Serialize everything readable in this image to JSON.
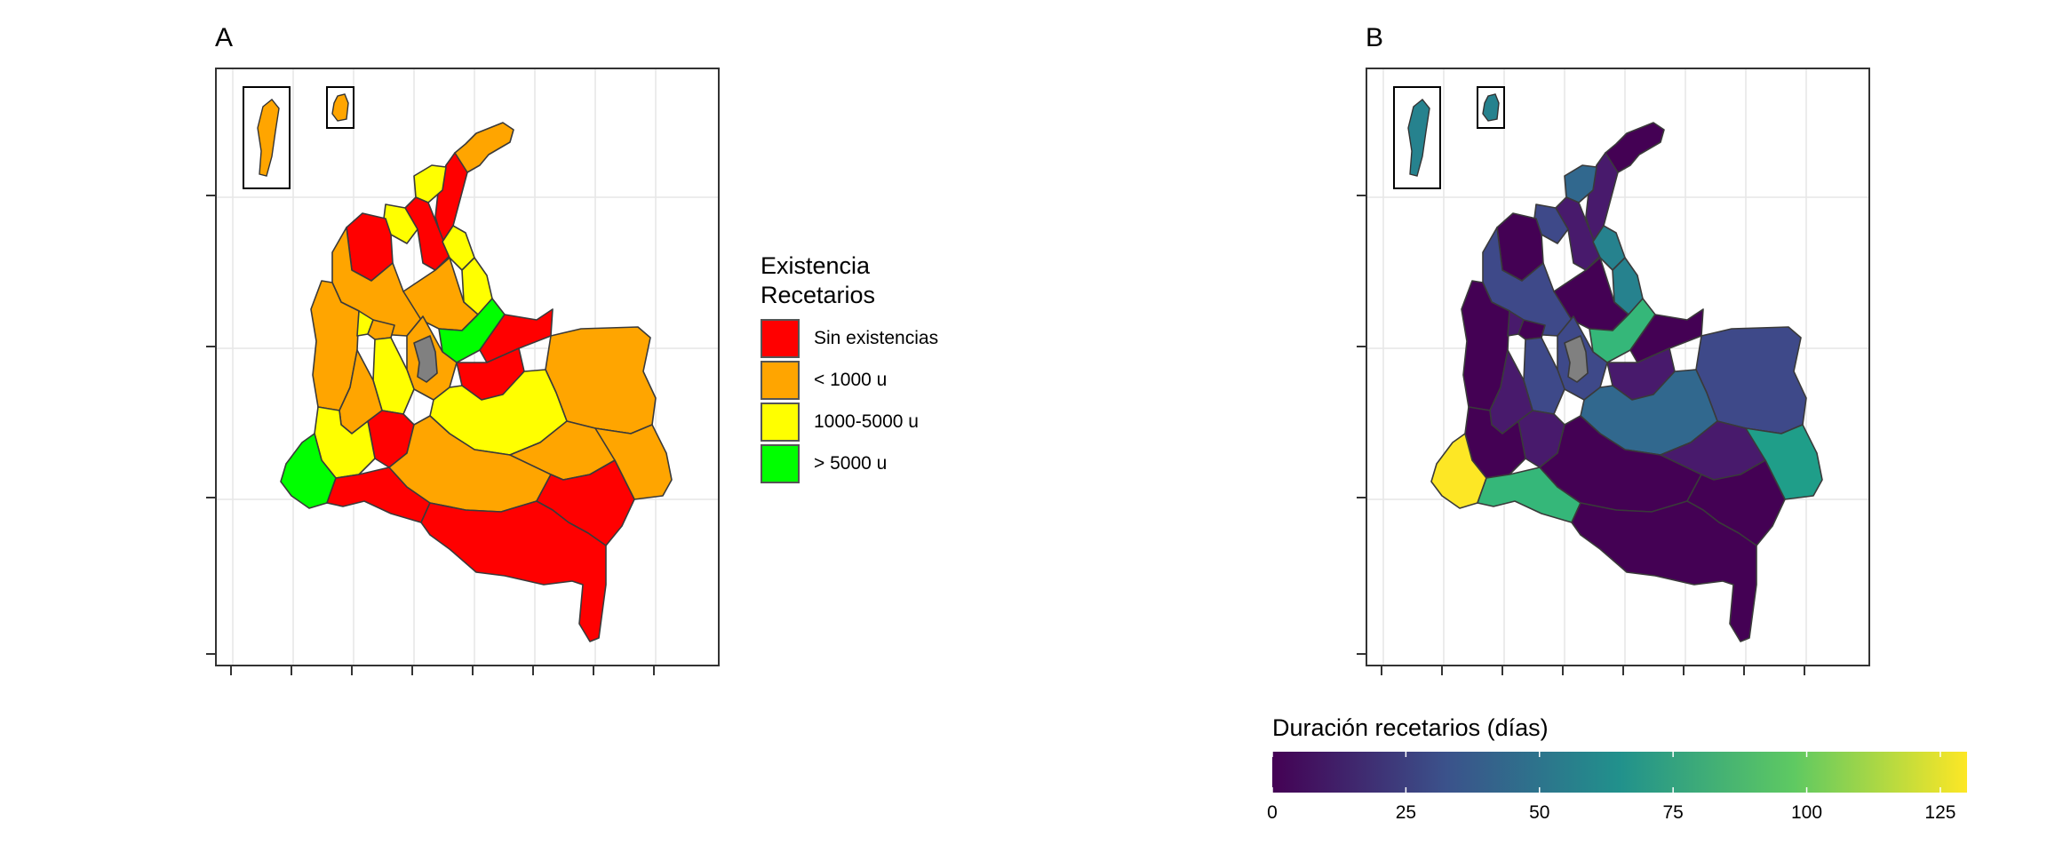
{
  "panel_a": {
    "label": "A",
    "legend": {
      "title": "Existencia\nRecetarios",
      "items": [
        {
          "label": "Sin existencias",
          "color": "#ff0000"
        },
        {
          "label": "< 1000 u",
          "color": "#ffa500"
        },
        {
          "label": "1000-5000 u",
          "color": "#ffff00"
        },
        {
          "label": "> 5000 u",
          "color": "#00ff00"
        }
      ]
    },
    "no_data_color": "#808080"
  },
  "panel_b": {
    "label": "B",
    "colorbar": {
      "title": "Duración recetarios (días)",
      "ticks": [
        "0",
        "25",
        "50",
        "75",
        "100",
        "125"
      ],
      "range": [
        0,
        130
      ],
      "palette": [
        "#440154",
        "#3b528b",
        "#21918c",
        "#5ec962",
        "#fde725"
      ]
    },
    "no_data_color": "#808080"
  }
}
